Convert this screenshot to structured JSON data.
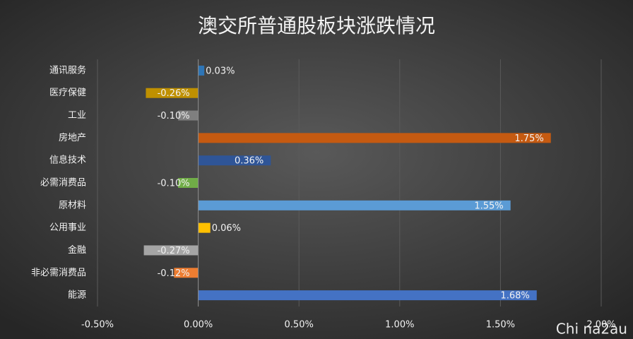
{
  "chart_data": {
    "type": "hbar",
    "title": "澳交所普通股板块涨跌情况",
    "categories": [
      "通讯服务",
      "医疗保健",
      "工业",
      "房地产",
      "信息技术",
      "必需消费品",
      "原材料",
      "公用事业",
      "金融",
      "非必需消费品",
      "能源"
    ],
    "values": [
      0.03,
      -0.26,
      -0.1,
      1.75,
      0.36,
      -0.1,
      1.55,
      0.06,
      -0.27,
      -0.12,
      1.68
    ],
    "value_labels": [
      "0.03%",
      "-0.26%",
      "-0.10%",
      "1.75%",
      "0.36%",
      "-0.10%",
      "1.55%",
      "0.06%",
      "-0.27%",
      "-0.12%",
      "1.68%"
    ],
    "colors": [
      "#2e75b6",
      "#bf9000",
      "#7f7f7f",
      "#c55a11",
      "#2f5597",
      "#70ad47",
      "#5b9bd5",
      "#ffc000",
      "#a5a5a5",
      "#ed7d31",
      "#4472c4"
    ],
    "xlim": [
      -0.5,
      2.0
    ],
    "xticks": [
      {
        "value": -0.5,
        "label": "-0.50%"
      },
      {
        "value": 0,
        "label": "0.00%"
      },
      {
        "value": 0.5,
        "label": "0.50%"
      },
      {
        "value": 1.0,
        "label": "1.00%"
      },
      {
        "value": 1.5,
        "label": "1.50%"
      },
      {
        "value": 2.0,
        "label": "2.00%"
      }
    ],
    "grid": true,
    "watermark": "Chi na2au"
  }
}
